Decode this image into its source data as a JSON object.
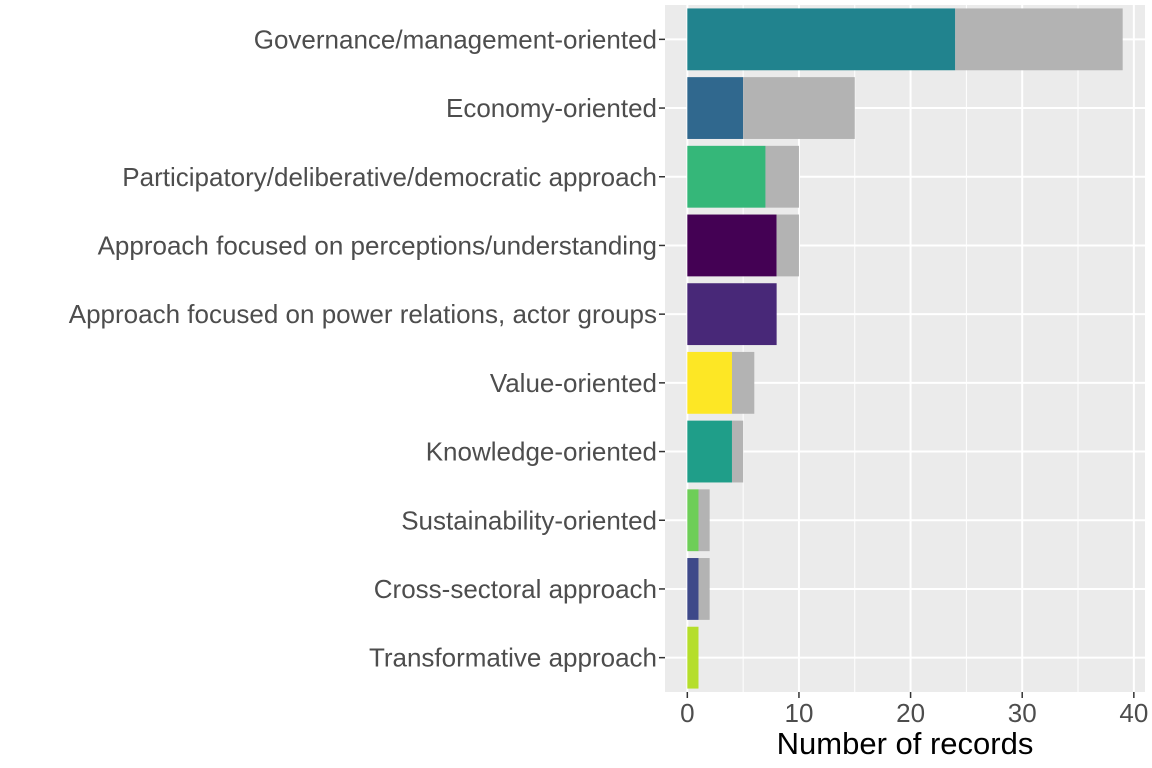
{
  "chart_data": {
    "type": "bar",
    "orientation": "horizontal",
    "stacked": true,
    "xlabel": "Number of records",
    "ylabel": "",
    "xlim": [
      -2,
      41
    ],
    "x_ticks": [
      0,
      10,
      20,
      30,
      40
    ],
    "grid": true,
    "legend": "none",
    "categories": [
      "Governance/management-oriented",
      "Economy-oriented",
      "Participatory/deliberative/democratic approach",
      "Approach focused on perceptions/understanding",
      "Approach focused on power relations, actor groups",
      "Value-oriented",
      "Knowledge-oriented",
      "Sustainability-oriented",
      "Cross-sectoral approach",
      "Transformative approach"
    ],
    "series": [
      {
        "values": [
          24,
          5,
          7,
          8,
          8,
          4,
          4,
          1,
          1,
          1
        ],
        "colors": [
          "#21838e",
          "#30688e",
          "#35b779",
          "#440154",
          "#482878",
          "#fde725",
          "#1f9e89",
          "#6ece58",
          "#3e4989",
          "#b5de2b"
        ]
      },
      {
        "values": [
          15,
          10,
          3,
          2,
          0,
          2,
          1,
          1,
          1,
          0
        ],
        "color": "#b3b3b3"
      }
    ],
    "panel_background": "#ebebeb",
    "gridline_color": "#ffffff"
  }
}
